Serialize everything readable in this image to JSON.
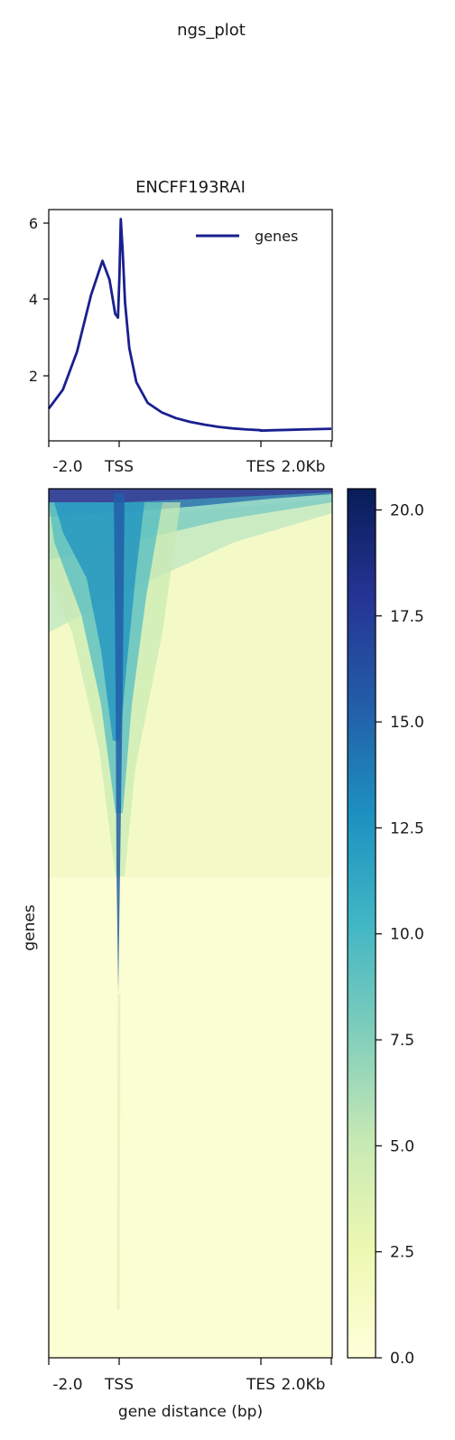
{
  "chart_data": {
    "title": "ngs_plot",
    "profile": {
      "type": "line",
      "subtitle": "ENCFF193RAI",
      "x_ticks": [
        "-2.0",
        "TSS",
        "TES",
        "2.0Kb"
      ],
      "y_ticks": [
        "2",
        "4",
        "6"
      ],
      "ylim": [
        0.25,
        6.35
      ],
      "legend": "genes",
      "legend_position": "top-right",
      "line_color": "#1a1f8f",
      "series": [
        {
          "name": "genes",
          "x": [
            0,
            0.05,
            0.1,
            0.15,
            0.19,
            0.215,
            0.235,
            0.245,
            0.25,
            0.255,
            0.262,
            0.27,
            0.285,
            0.31,
            0.35,
            0.4,
            0.45,
            0.5,
            0.55,
            0.6,
            0.65,
            0.7,
            0.75,
            0.75,
            0.8,
            0.85,
            0.9,
            0.95,
            1.0
          ],
          "y": [
            1.1,
            1.6,
            2.6,
            4.1,
            5.0,
            4.5,
            3.6,
            3.5,
            4.6,
            6.1,
            5.2,
            3.9,
            2.7,
            1.8,
            1.25,
            1.0,
            0.85,
            0.75,
            0.68,
            0.62,
            0.58,
            0.55,
            0.53,
            0.52,
            0.53,
            0.54,
            0.55,
            0.56,
            0.57
          ]
        }
      ]
    },
    "heatmap": {
      "type": "heatmap",
      "ylabel": "genes",
      "xlabel": "gene distance (bp)",
      "x_ticks": [
        "-2.0",
        "TSS",
        "TES",
        "2.0Kb"
      ],
      "colorbar": {
        "min": 0.0,
        "max": 20.5,
        "ticks": [
          "0.0",
          "2.5",
          "5.0",
          "7.5",
          "10.0",
          "12.5",
          "15.0",
          "17.5",
          "20.0"
        ],
        "colormap": "YlGnBu"
      }
    }
  }
}
